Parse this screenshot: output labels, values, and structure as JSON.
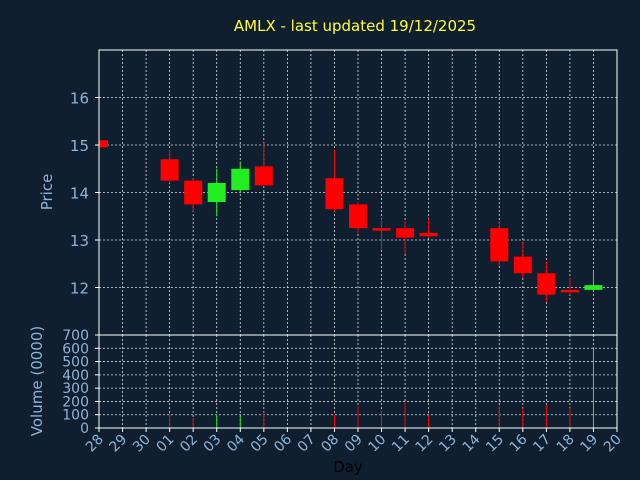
{
  "colors": {
    "background": "#0f1f2f",
    "title": "#ffff33",
    "axis_text": "#8fb4d6",
    "frame": "#ffffff",
    "up": "#22ee22",
    "down": "#ff0000"
  },
  "chart_data": {
    "type": "candlestick",
    "title": "AMLX - last updated 19/12/2025",
    "xlabel": "Day",
    "ylabel": "Price",
    "volume_ylabel": "Volume (0000)",
    "grid": true,
    "price_ylim": [
      11,
      17
    ],
    "price_yticks": [
      12,
      13,
      14,
      15,
      16
    ],
    "volume_ylim": [
      0,
      700
    ],
    "volume_yticks": [
      0,
      100,
      200,
      300,
      400,
      500,
      600,
      700
    ],
    "x_tick_labels": [
      "28",
      "29",
      "30",
      "01",
      "02",
      "03",
      "04",
      "05",
      "06",
      "07",
      "08",
      "09",
      "10",
      "11",
      "12",
      "13",
      "14",
      "15",
      "16",
      "17",
      "18",
      "19",
      "20"
    ],
    "candles": [
      {
        "day": "28",
        "open": 15.1,
        "high": 15.1,
        "low": 14.95,
        "close": 14.95,
        "volume": 0
      },
      {
        "day": "01",
        "open": 14.7,
        "high": 14.9,
        "low": 14.2,
        "close": 14.25,
        "volume": 110
      },
      {
        "day": "02",
        "open": 14.25,
        "high": 14.3,
        "low": 13.6,
        "close": 13.75,
        "volume": 75
      },
      {
        "day": "03",
        "open": 13.8,
        "high": 14.5,
        "low": 13.5,
        "close": 14.2,
        "volume": 100
      },
      {
        "day": "04",
        "open": 14.05,
        "high": 14.65,
        "low": 14.0,
        "close": 14.5,
        "volume": 90
      },
      {
        "day": "05",
        "open": 14.55,
        "high": 15.05,
        "low": 14.15,
        "close": 14.15,
        "volume": 120
      },
      {
        "day": "08",
        "open": 14.3,
        "high": 14.9,
        "low": 13.6,
        "close": 13.65,
        "volume": 100
      },
      {
        "day": "09",
        "open": 13.75,
        "high": 13.8,
        "low": 13.15,
        "close": 13.25,
        "volume": 165
      },
      {
        "day": "10",
        "open": 13.25,
        "high": 13.45,
        "low": 12.8,
        "close": 13.22,
        "volume": 130
      },
      {
        "day": "11",
        "open": 13.25,
        "high": 13.4,
        "low": 12.7,
        "close": 13.05,
        "volume": 190
      },
      {
        "day": "12",
        "open": 13.15,
        "high": 13.45,
        "low": 13.05,
        "close": 13.08,
        "volume": 95
      },
      {
        "day": "15",
        "open": 13.25,
        "high": 13.4,
        "low": 12.45,
        "close": 12.55,
        "volume": 165
      },
      {
        "day": "16",
        "open": 12.65,
        "high": 12.95,
        "low": 12.2,
        "close": 12.3,
        "volume": 150
      },
      {
        "day": "17",
        "open": 12.3,
        "high": 12.55,
        "low": 11.7,
        "close": 11.85,
        "volume": 175
      },
      {
        "day": "18",
        "open": 11.95,
        "high": 12.2,
        "low": 11.85,
        "close": 11.9,
        "volume": 150
      },
      {
        "day": "19",
        "open": 11.95,
        "high": 12.35,
        "low": 11.9,
        "close": 12.05,
        "volume": 610
      }
    ]
  }
}
